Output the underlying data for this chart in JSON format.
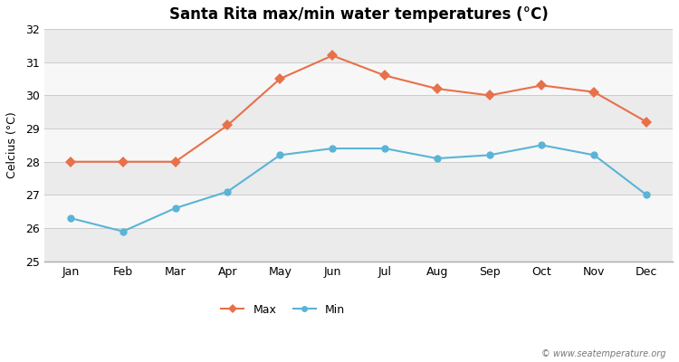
{
  "title": "Santa Rita max/min water temperatures (°C)",
  "ylabel": "Celcius (°C)",
  "months": [
    "Jan",
    "Feb",
    "Mar",
    "Apr",
    "May",
    "Jun",
    "Jul",
    "Aug",
    "Sep",
    "Oct",
    "Nov",
    "Dec"
  ],
  "max_temps": [
    28.0,
    28.0,
    28.0,
    29.1,
    30.5,
    31.2,
    30.6,
    30.2,
    30.0,
    30.3,
    30.1,
    29.2
  ],
  "min_temps": [
    26.3,
    25.9,
    26.6,
    27.1,
    28.2,
    28.4,
    28.4,
    28.1,
    28.2,
    28.5,
    28.2,
    27.0
  ],
  "max_color": "#e8704a",
  "min_color": "#5ab4d6",
  "ylim": [
    25,
    32
  ],
  "yticks": [
    25,
    26,
    27,
    28,
    29,
    30,
    31,
    32
  ],
  "bg_color": "#ffffff",
  "plot_bg_color": "#ffffff",
  "band_color_light": "#ebebeb",
  "band_color_white": "#f7f7f7",
  "watermark": "© www.seatemperature.org",
  "legend_max": "Max",
  "legend_min": "Min"
}
